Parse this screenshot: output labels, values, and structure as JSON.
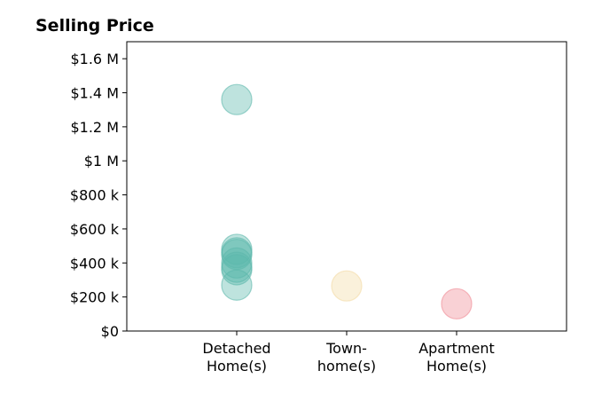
{
  "chart_data": {
    "type": "scatter",
    "title": "Selling Price",
    "xlabel": "",
    "ylabel": "",
    "categories": [
      [
        "Detached",
        "Home(s)"
      ],
      [
        "Town-",
        "home(s)"
      ],
      [
        "Apartment",
        "Home(s)"
      ]
    ],
    "ylim": [
      0,
      1700000
    ],
    "yticks": [
      0,
      200000,
      400000,
      600000,
      800000,
      1000000,
      1200000,
      1400000,
      1600000
    ],
    "ytick_labels": [
      "$0",
      "$200 k",
      "$400 k",
      "$600 k",
      "$800 k",
      "$1 M",
      "$1.2 M",
      "$1.4 M",
      "$1.6 M"
    ],
    "grid": false,
    "legend": "none",
    "colors": [
      "#5db8ac",
      "#f3dba5",
      "#f08c96"
    ],
    "points": [
      {
        "category": 0,
        "y": 1360000
      },
      {
        "category": 0,
        "y": 480000
      },
      {
        "category": 0,
        "y": 460000
      },
      {
        "category": 0,
        "y": 450000
      },
      {
        "category": 0,
        "y": 400000
      },
      {
        "category": 0,
        "y": 375000
      },
      {
        "category": 0,
        "y": 360000
      },
      {
        "category": 0,
        "y": 270000
      },
      {
        "category": 1,
        "y": 265000
      },
      {
        "category": 2,
        "y": 160000
      }
    ]
  }
}
